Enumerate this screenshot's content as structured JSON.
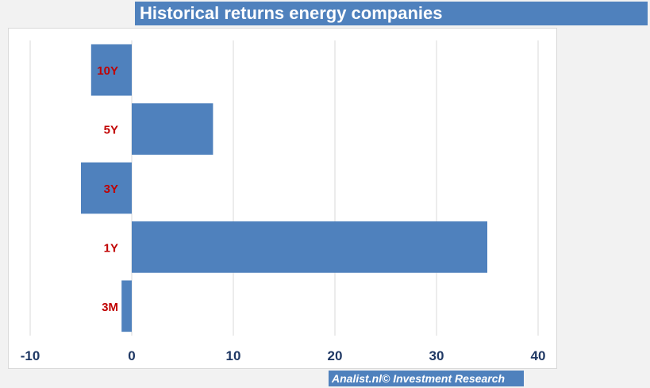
{
  "header": {
    "title": "Historical returns energy companies"
  },
  "footer": {
    "credit": "Analist.nl© Investment Research"
  },
  "colors": {
    "bar": "#4f81bd",
    "category_label": "#c00000",
    "tick_label": "#1f3864",
    "grid": "#d9d9d9"
  },
  "chart_data": {
    "type": "bar",
    "orientation": "horizontal",
    "title": "Historical returns energy companies",
    "xlabel": "",
    "ylabel": "",
    "categories": [
      "10Y",
      "5Y",
      "3Y",
      "1Y",
      "3M"
    ],
    "values": [
      -4,
      8,
      -5,
      35,
      -1
    ],
    "xlim": [
      -10,
      40
    ],
    "xticks": [
      -10,
      0,
      10,
      20,
      30,
      40
    ],
    "grid": "vertical",
    "legend": "none"
  }
}
